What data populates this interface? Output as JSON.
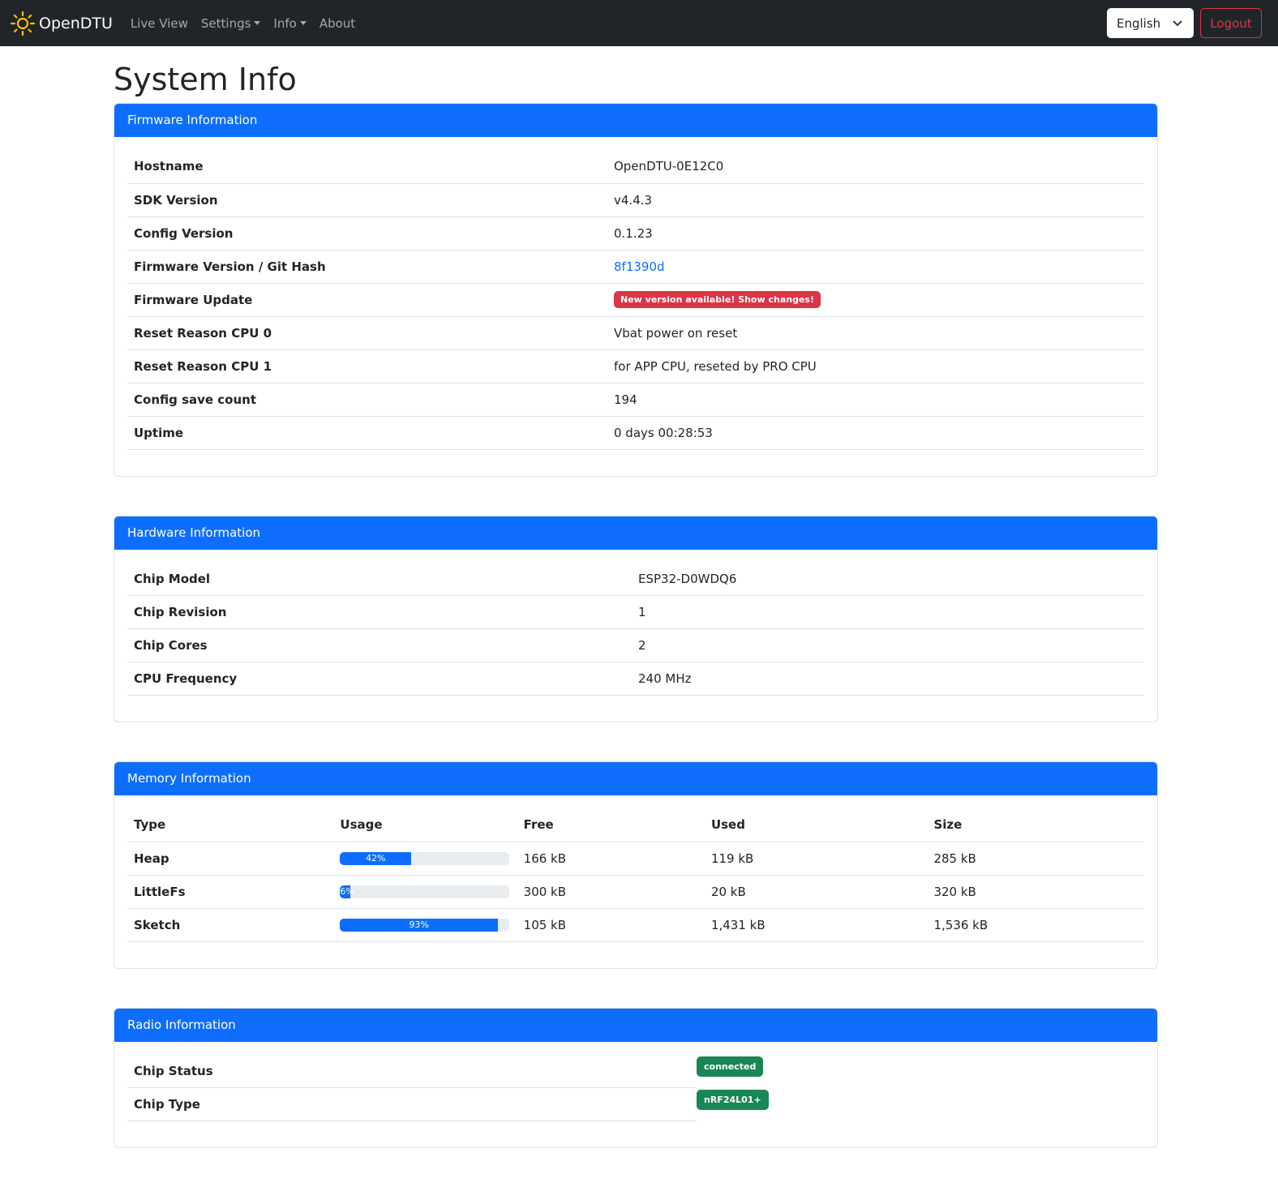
{
  "nav": {
    "brand": "OpenDTU",
    "items": [
      "Live View",
      "Settings",
      "Info",
      "About"
    ],
    "language": "English",
    "logout": "Logout"
  },
  "page_title": "System Info",
  "firmware": {
    "title": "Firmware Information",
    "rows": [
      {
        "label": "Hostname",
        "value": "OpenDTU-0E12C0"
      },
      {
        "label": "SDK Version",
        "value": "v4.4.3"
      },
      {
        "label": "Config Version",
        "value": "0.1.23"
      },
      {
        "label": "Firmware Version / Git Hash",
        "value": "8f1390d"
      },
      {
        "label": "Firmware Update",
        "value": "New version available! Show changes!"
      },
      {
        "label": "Reset Reason CPU 0",
        "value": "Vbat power on reset"
      },
      {
        "label": "Reset Reason CPU 1",
        "value": "for APP CPU, reseted by PRO CPU"
      },
      {
        "label": "Config save count",
        "value": "194"
      },
      {
        "label": "Uptime",
        "value": "0 days 00:28:53"
      }
    ]
  },
  "hardware": {
    "title": "Hardware Information",
    "rows": [
      {
        "label": "Chip Model",
        "value": "ESP32-D0WDQ6"
      },
      {
        "label": "Chip Revision",
        "value": "1"
      },
      {
        "label": "Chip Cores",
        "value": "2"
      },
      {
        "label": "CPU Frequency",
        "value": "240 MHz"
      }
    ]
  },
  "memory": {
    "title": "Memory Information",
    "headers": [
      "Type",
      "Usage",
      "Free",
      "Used",
      "Size"
    ],
    "rows": [
      {
        "type": "Heap",
        "usage": 42,
        "usage_label": "42%",
        "free": "166 kB",
        "used": "119 kB",
        "size": "285 kB"
      },
      {
        "type": "LittleFs",
        "usage": 6,
        "usage_label": "6%",
        "free": "300 kB",
        "used": "20 kB",
        "size": "320 kB"
      },
      {
        "type": "Sketch",
        "usage": 93,
        "usage_label": "93%",
        "free": "105 kB",
        "used": "1,431 kB",
        "size": "1,536 kB"
      }
    ]
  },
  "radio": {
    "title": "Radio Information",
    "rows": [
      {
        "label": "Chip Status",
        "value": "connected"
      },
      {
        "label": "Chip Type",
        "value": "nRF24L01+"
      }
    ]
  },
  "colors": {
    "primary": "#0d6efd",
    "danger": "#dc3545",
    "success": "#198754",
    "navbar": "#212529"
  }
}
